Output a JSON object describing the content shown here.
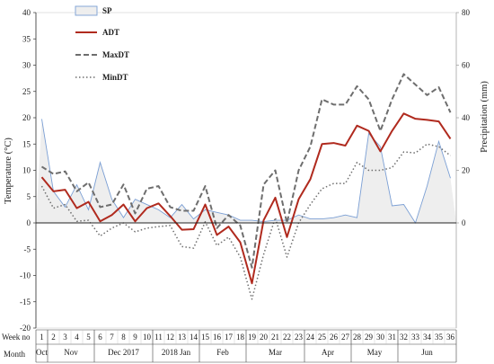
{
  "chart_data": {
    "type": "line",
    "y_left_label": "Temperature (°C)",
    "y_right_label": "Precipitation (mm)",
    "y_left_lim": [
      -20,
      40
    ],
    "y_left_ticks": [
      -20,
      -15,
      -10,
      -5,
      0,
      5,
      10,
      15,
      20,
      25,
      30,
      35,
      40
    ],
    "y_right_lim": [
      0,
      80
    ],
    "y_right_ticks": [
      0,
      20,
      40,
      60,
      80
    ],
    "x_header_week": "Week no",
    "x_header_month": "Month",
    "weeks": [
      1,
      2,
      3,
      4,
      5,
      6,
      7,
      8,
      9,
      10,
      11,
      12,
      13,
      14,
      15,
      16,
      17,
      18,
      19,
      20,
      21,
      22,
      23,
      24,
      25,
      26,
      27,
      28,
      29,
      30,
      31,
      32,
      33,
      34,
      35,
      36
    ],
    "month_labels": [
      {
        "label": "Oct",
        "start_week": 1,
        "end_week": 1
      },
      {
        "label": "Nov",
        "start_week": 2,
        "end_week": 5
      },
      {
        "label": "Dec   2017",
        "start_week": 6,
        "end_week": 10
      },
      {
        "label": "2018  Jan",
        "start_week": 11,
        "end_week": 14
      },
      {
        "label": "Feb",
        "start_week": 15,
        "end_week": 18
      },
      {
        "label": "Mar",
        "start_week": 19,
        "end_week": 23
      },
      {
        "label": "Apr",
        "start_week": 24,
        "end_week": 27
      },
      {
        "label": "May",
        "start_week": 28,
        "end_week": 31
      },
      {
        "label": "Jun",
        "start_week": 32,
        "end_week": 36
      }
    ],
    "legend": [
      {
        "name": "SP",
        "style": "area",
        "color": "#7b9fd4"
      },
      {
        "name": "ADT",
        "style": "solid",
        "color": "#b02a1e"
      },
      {
        "name": "MaxDT",
        "style": "dashed",
        "color": "#6e6e6e"
      },
      {
        "name": "MinDT",
        "style": "dotted",
        "color": "#6e6e6e"
      }
    ],
    "series": [
      {
        "name": "SP",
        "axis": "right",
        "values": [
          39.5,
          12,
          6,
          14.5,
          5,
          23,
          9,
          2,
          9,
          7,
          5,
          2,
          7,
          1.5,
          5,
          4,
          3,
          1,
          1,
          0.5,
          1,
          1,
          3,
          1.5,
          1.5,
          2,
          3,
          2,
          34,
          29,
          6.5,
          7,
          0,
          14,
          31,
          17
        ]
      },
      {
        "name": "ADT",
        "axis": "left",
        "values": [
          8.7,
          6,
          6.3,
          2.8,
          4,
          0.3,
          1.5,
          3.5,
          0.3,
          2.8,
          3.7,
          1.3,
          -1.3,
          -1.2,
          3.5,
          -2.3,
          -0.7,
          -3.7,
          -11.5,
          0.5,
          4.8,
          -2.7,
          4.5,
          8.3,
          15,
          15.2,
          14.7,
          18.5,
          17.5,
          13.6,
          17.5,
          20.8,
          19.8,
          19.6,
          19.3,
          16
        ]
      },
      {
        "name": "MaxDT",
        "axis": "left",
        "values": [
          10.7,
          9.3,
          9.8,
          6,
          7.7,
          3,
          3.5,
          7.3,
          1.8,
          6.5,
          7,
          3,
          2.3,
          2.3,
          7,
          -1,
          1.5,
          -0.5,
          -8.5,
          7.3,
          10,
          0,
          10,
          14.5,
          23.5,
          22.5,
          22.5,
          26,
          23.5,
          17.5,
          23.5,
          28.3,
          26.3,
          24.3,
          25.8,
          21
        ]
      },
      {
        "name": "MinDT",
        "axis": "left",
        "values": [
          7,
          2.8,
          3.5,
          0.3,
          0.5,
          -2.5,
          -1,
          0,
          -1.7,
          -1,
          -0.7,
          -0.5,
          -4.5,
          -4.8,
          0.2,
          -4.3,
          -2.7,
          -6.5,
          -14.5,
          -6,
          1,
          -6.5,
          0,
          3.5,
          6.5,
          7.5,
          7.5,
          11.5,
          10,
          10,
          10.5,
          13.5,
          13.3,
          15,
          14.5,
          12.8
        ]
      }
    ]
  }
}
